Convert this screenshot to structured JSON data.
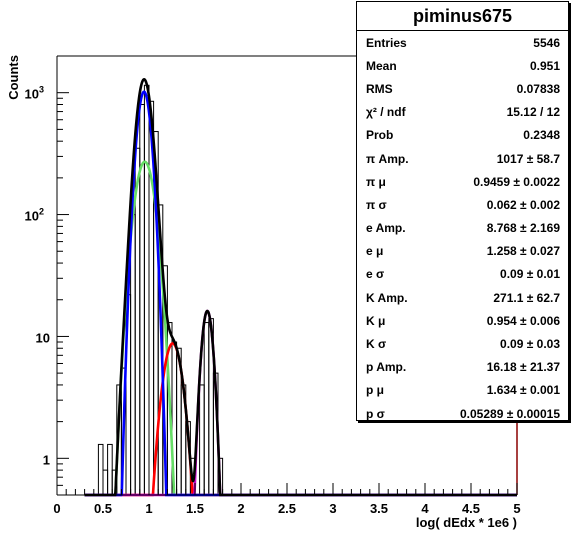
{
  "chart_data": {
    "type": "histogram",
    "xlabel": "log( dEdx * 1e6 )",
    "ylabel": "Counts",
    "xlim": [
      0,
      5
    ],
    "ylim_log": [
      0.5,
      2000
    ],
    "log_y": true,
    "grid": false,
    "x_ticks": [
      "0",
      "0.5",
      "1",
      "1.5",
      "2",
      "2.5",
      "3",
      "3.5",
      "4",
      "4.5",
      "5"
    ],
    "y_ticks": [
      {
        "value": 1,
        "label": "1"
      },
      {
        "value": 10,
        "label": "10"
      },
      {
        "value": 100,
        "label": "10",
        "exp": "2"
      },
      {
        "value": 1000,
        "label": "10",
        "exp": "3"
      }
    ],
    "histogram": {
      "bin_width": 0.05,
      "bins": [
        {
          "x": 0.45,
          "y": 1.3
        },
        {
          "x": 0.5,
          "y": 0.8
        },
        {
          "x": 0.55,
          "y": 1.3
        },
        {
          "x": 0.6,
          "y": 0.8
        },
        {
          "x": 0.65,
          "y": 4
        },
        {
          "x": 0.7,
          "y": 5.5
        },
        {
          "x": 0.75,
          "y": 22
        },
        {
          "x": 0.8,
          "y": 100
        },
        {
          "x": 0.85,
          "y": 350
        },
        {
          "x": 0.9,
          "y": 800
        },
        {
          "x": 0.95,
          "y": 1150
        },
        {
          "x": 1.0,
          "y": 850
        },
        {
          "x": 1.05,
          "y": 480
        },
        {
          "x": 1.1,
          "y": 120
        },
        {
          "x": 1.15,
          "y": 38
        },
        {
          "x": 1.2,
          "y": 13
        },
        {
          "x": 1.25,
          "y": 9
        },
        {
          "x": 1.3,
          "y": 8
        },
        {
          "x": 1.35,
          "y": 4
        },
        {
          "x": 1.4,
          "y": 2
        },
        {
          "x": 1.45,
          "y": 1
        },
        {
          "x": 1.55,
          "y": 4
        },
        {
          "x": 1.6,
          "y": 13
        },
        {
          "x": 1.65,
          "y": 14
        },
        {
          "x": 1.7,
          "y": 5
        },
        {
          "x": 1.75,
          "y": 1
        }
      ]
    },
    "series": [
      {
        "name": "total",
        "color": "#000000",
        "type": "sum"
      },
      {
        "name": "pi",
        "color": "#0000ff",
        "amp": 1017,
        "mu": 0.9459,
        "sigma": 0.062
      },
      {
        "name": "e",
        "color": "#ff0000",
        "amp": 8.768,
        "mu": 1.258,
        "sigma": 0.09
      },
      {
        "name": "K",
        "color": "#66dd66",
        "amp": 271.1,
        "mu": 0.954,
        "sigma": 0.09
      },
      {
        "name": "p",
        "color": "#cc00cc",
        "amp": 16.18,
        "mu": 1.634,
        "sigma": 0.05289
      }
    ]
  },
  "stats": {
    "title": "piminus675",
    "rows": [
      {
        "label": "Entries",
        "value": "5546"
      },
      {
        "label": "Mean",
        "value": "0.951"
      },
      {
        "label": "RMS",
        "value": "0.07838"
      },
      {
        "label": "χ² / ndf",
        "value": "15.12 / 12"
      },
      {
        "label": "Prob",
        "value": "0.2348"
      },
      {
        "label": "π Amp.",
        "value": "1017 ± 58.7"
      },
      {
        "label": "π μ",
        "value": "0.9459 ± 0.0022"
      },
      {
        "label": "π σ",
        "value": "0.062 ± 0.002"
      },
      {
        "label": "e Amp.",
        "value": "8.768 ± 2.169"
      },
      {
        "label": "e μ",
        "value": "1.258 ± 0.027"
      },
      {
        "label": "e σ",
        "value": "0.09 ± 0.01"
      },
      {
        "label": "K Amp.",
        "value": "271.1 ± 62.7"
      },
      {
        "label": "K μ",
        "value": "0.954 ± 0.006"
      },
      {
        "label": "K σ",
        "value": "0.09 ± 0.03"
      },
      {
        "label": "p Amp.",
        "value": "16.18 ± 21.37"
      },
      {
        "label": "p μ",
        "value": "1.634 ± 0.001"
      },
      {
        "label": "p σ",
        "value": "0.05289 ± 0.00015"
      }
    ]
  }
}
